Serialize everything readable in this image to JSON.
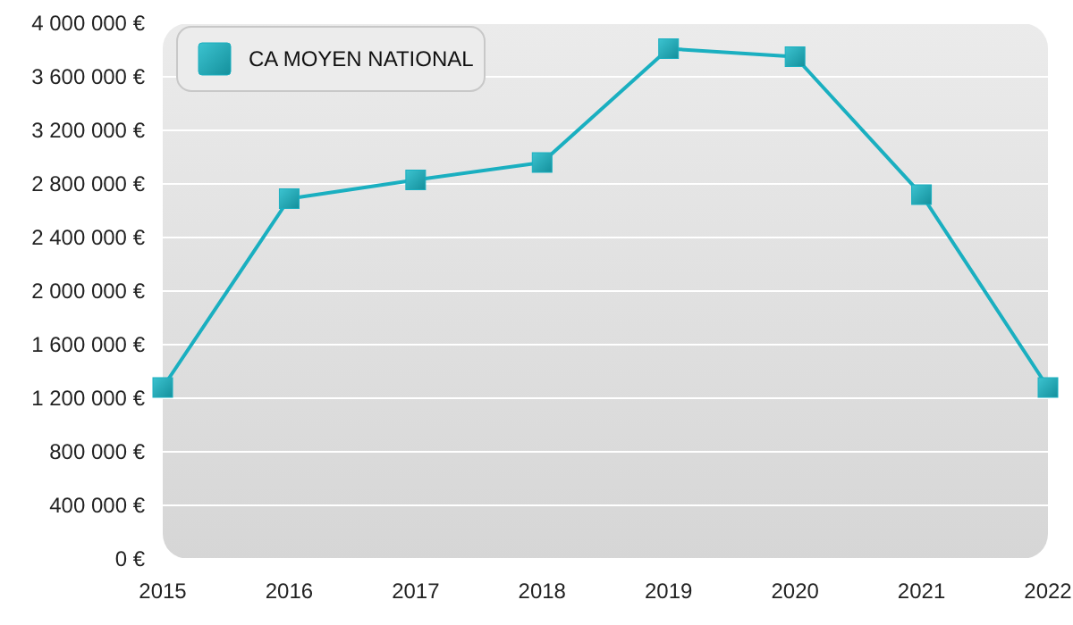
{
  "chart_data": {
    "type": "line",
    "categories": [
      "2015",
      "2016",
      "2017",
      "2018",
      "2019",
      "2020",
      "2021",
      "2022"
    ],
    "series": [
      {
        "name": "CA MOYEN NATIONAL",
        "color": "#1aafc0",
        "values": [
          1280000,
          2690000,
          2830000,
          2960000,
          3810000,
          3750000,
          2720000,
          1280000
        ]
      }
    ],
    "ylim": [
      0,
      4000000
    ],
    "yticks": [
      {
        "value": 0,
        "label": "0 €"
      },
      {
        "value": 400000,
        "label": "400 000 €"
      },
      {
        "value": 800000,
        "label": "800 000 €"
      },
      {
        "value": 1200000,
        "label": "1 200 000 €"
      },
      {
        "value": 1600000,
        "label": "1 600 000 €"
      },
      {
        "value": 2000000,
        "label": "2 000 000 €"
      },
      {
        "value": 2400000,
        "label": "2 400 000 €"
      },
      {
        "value": 2800000,
        "label": "2 800 000 €"
      },
      {
        "value": 3200000,
        "label": "3 200 000 €"
      },
      {
        "value": 3600000,
        "label": "3 600 000 €"
      },
      {
        "value": 4000000,
        "label": "4 000 000 €"
      }
    ],
    "grid": "y",
    "legend": "top left",
    "marker": "square",
    "line_style": "solid"
  }
}
